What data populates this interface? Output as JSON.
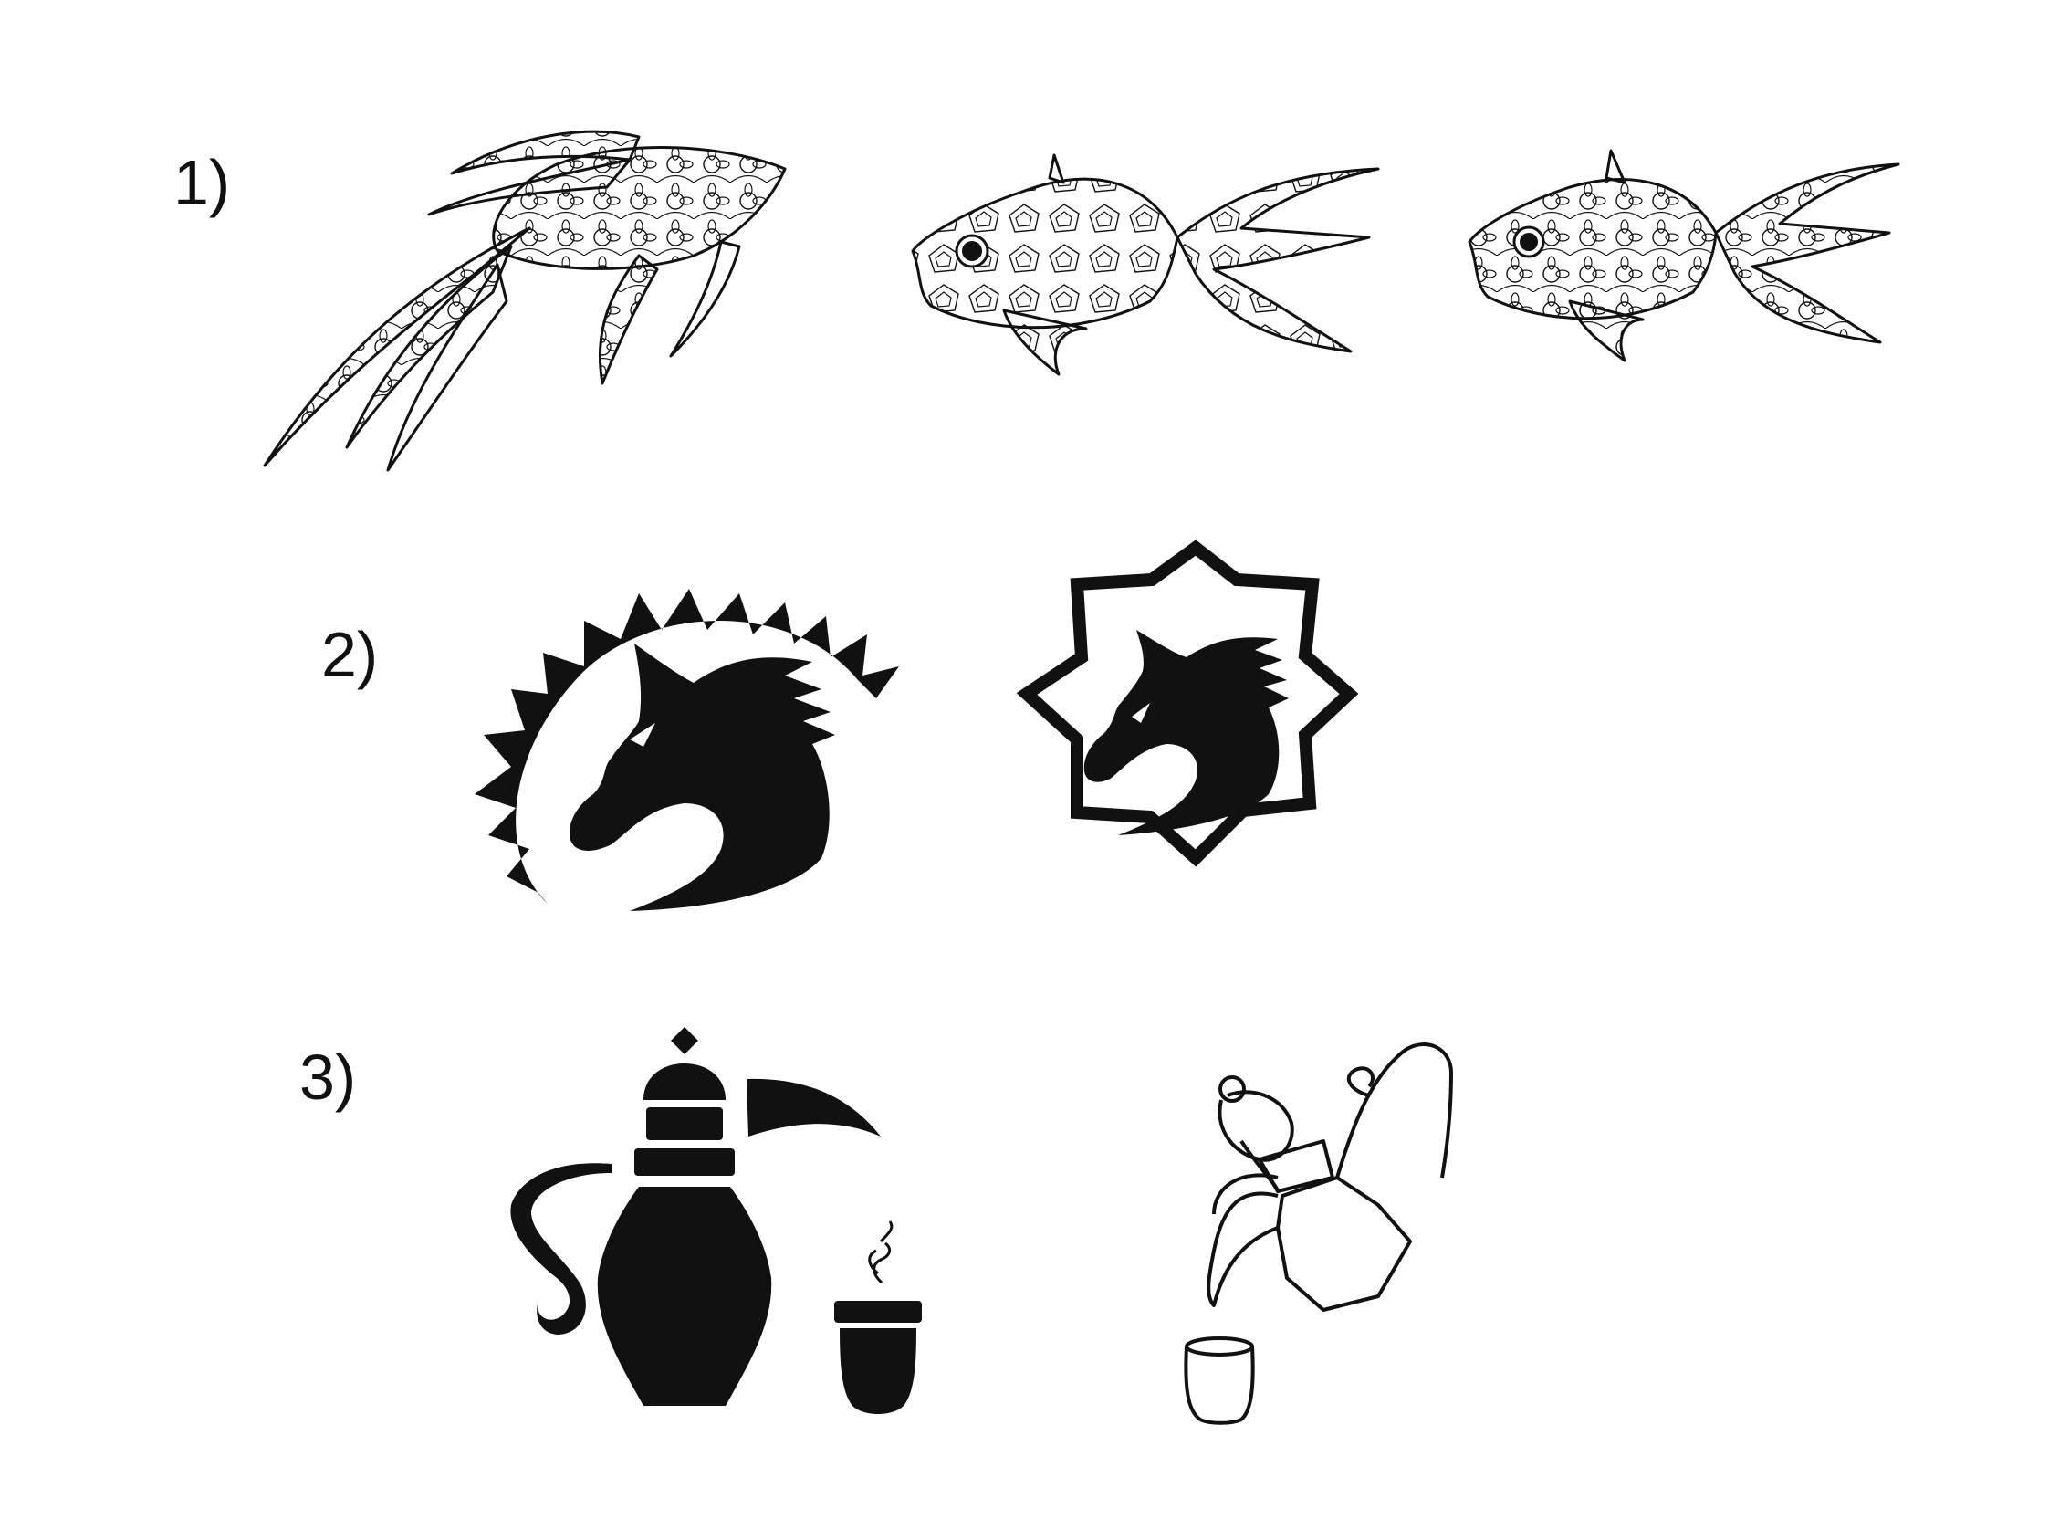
{
  "labels": {
    "row1": "1)",
    "row2": "2)",
    "row3": "3)"
  },
  "rows": [
    {
      "items": [
        "betta-fish-icon",
        "goldfish-geometric-icon",
        "goldfish-floral-icon"
      ]
    },
    {
      "items": [
        "horse-head-sun-emblem-icon",
        "horse-head-star-badge-icon"
      ]
    },
    {
      "items": [
        "dallah-coffee-pot-solid-icon",
        "coffee-cup-steam-icon",
        "dallah-coffee-pot-outline-icon",
        "cup-outline-icon"
      ]
    }
  ],
  "colors": {
    "ink": "#111111",
    "background": "#ffffff"
  }
}
